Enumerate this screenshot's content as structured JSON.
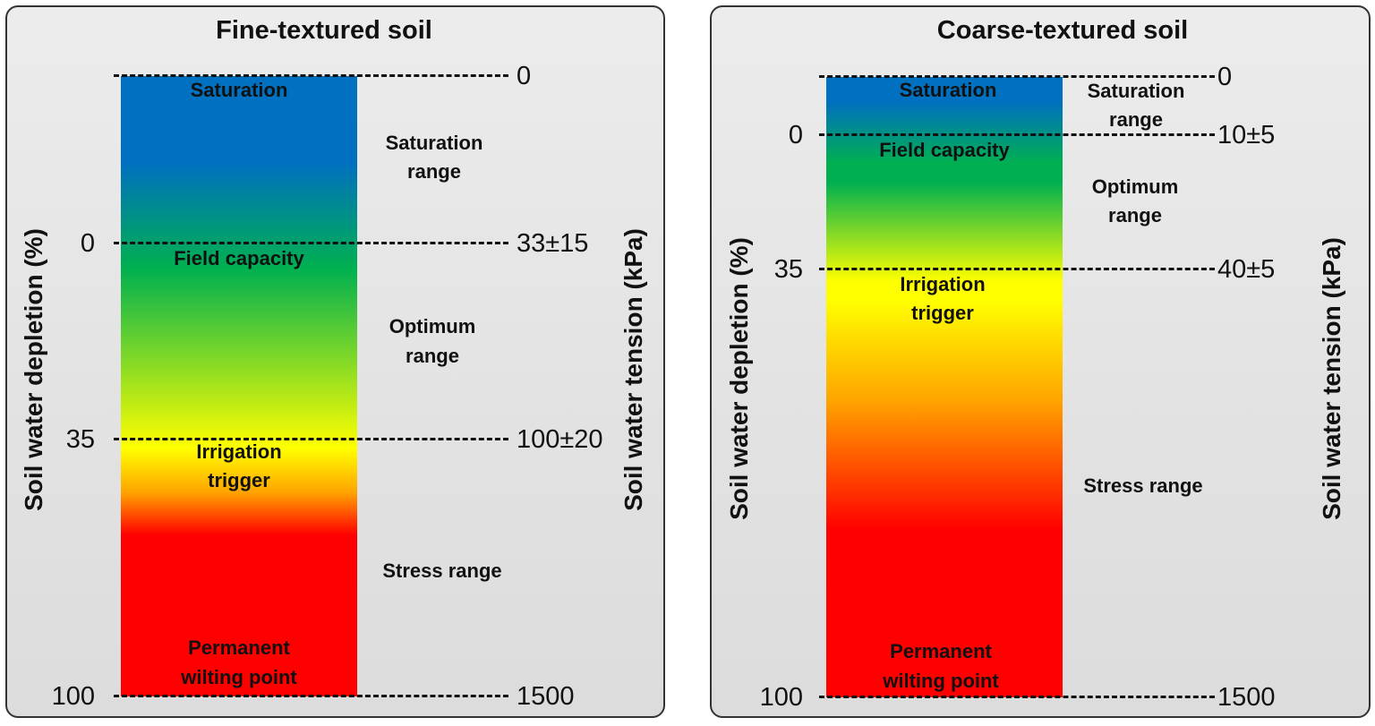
{
  "panels": [
    {
      "title": "Fine-textured soil",
      "left_axis": "Soil water depletion (%)",
      "right_axis": "Soil water tension (kPa)",
      "left_ticks": [
        "0",
        "35",
        "100"
      ],
      "right_ticks": [
        "0",
        "33±15",
        "100±20",
        "1500"
      ],
      "bar_labels": {
        "saturation": "Saturation",
        "field_capacity": "Field capacity",
        "irrigation_1": "Irrigation",
        "irrigation_2": "trigger",
        "pwp_1": "Permanent",
        "pwp_2": "wilting point"
      },
      "range_labels": {
        "sat_1": "Saturation",
        "sat_2": "range",
        "opt_1": "Optimum",
        "opt_2": "range",
        "stress": "Stress range"
      }
    },
    {
      "title": "Coarse-textured soil",
      "left_axis": "Soil water depletion (%)",
      "right_axis": "Soil water tension (kPa)",
      "left_ticks": [
        "0",
        "35",
        "100"
      ],
      "right_ticks": [
        "0",
        "10±5",
        "40±5",
        "1500"
      ],
      "bar_labels": {
        "saturation": "Saturation",
        "field_capacity": "Field capacity",
        "irrigation_1": "Irrigation",
        "irrigation_2": "trigger",
        "pwp_1": "Permanent",
        "pwp_2": "wilting point"
      },
      "range_labels": {
        "sat_1": "Saturation",
        "sat_2": "range",
        "opt_1": "Optimum",
        "opt_2": "range",
        "stress": "Stress range"
      }
    }
  ],
  "colors": {
    "saturation": "#0070c0",
    "optimum": "#00b050",
    "trigger": "#ffff00",
    "stress": "#ff0000"
  }
}
